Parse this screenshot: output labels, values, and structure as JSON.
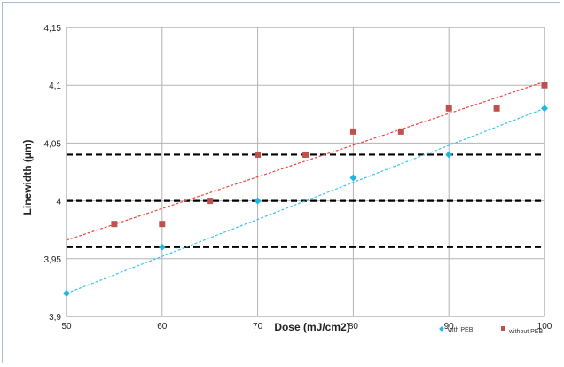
{
  "chart_data": {
    "type": "scatter",
    "title": "",
    "xlabel": "Dose (mJ/cm2)",
    "ylabel": "Linewidth (µm)",
    "xlim": [
      50,
      100
    ],
    "ylim": [
      3.9,
      4.15
    ],
    "xticks": [
      50,
      60,
      70,
      80,
      90,
      100
    ],
    "xtick_labels": [
      "50",
      "60",
      "70",
      "80",
      "90",
      "100"
    ],
    "yticks": [
      3.9,
      3.95,
      4.0,
      4.05,
      4.1,
      4.15
    ],
    "ytick_labels": [
      "3,9",
      "3,95",
      "4",
      "4,05",
      "4,1",
      "4,15"
    ],
    "grid": true,
    "legend_position": "bottom-right",
    "series": [
      {
        "name": "with PEB",
        "marker": "diamond",
        "color": "#1fb6e0",
        "x": [
          50,
          60,
          70,
          80,
          90,
          100
        ],
        "y": [
          3.92,
          3.96,
          4.0,
          4.02,
          4.04,
          4.08
        ],
        "trendline": {
          "x": [
            50,
            100
          ],
          "y": [
            3.92,
            4.08
          ],
          "color": "#3cc4ec",
          "style": "dashed"
        }
      },
      {
        "name": "without PEB",
        "marker": "square",
        "color": "#c0504d",
        "x": [
          55,
          60,
          65,
          70,
          75,
          80,
          85,
          90,
          95,
          100
        ],
        "y": [
          3.98,
          3.98,
          4.0,
          4.04,
          4.04,
          4.06,
          4.06,
          4.08,
          4.08,
          4.1
        ],
        "trendline": {
          "x": [
            50,
            100
          ],
          "y": [
            3.966,
            4.103
          ],
          "color": "#ee4444",
          "style": "dashed"
        }
      }
    ],
    "reference_lines": [
      {
        "y": 3.96,
        "color": "#000000",
        "style": "dashed"
      },
      {
        "y": 4.0,
        "color": "#000000",
        "style": "dashed"
      },
      {
        "y": 4.04,
        "color": "#000000",
        "style": "dashed"
      }
    ]
  }
}
